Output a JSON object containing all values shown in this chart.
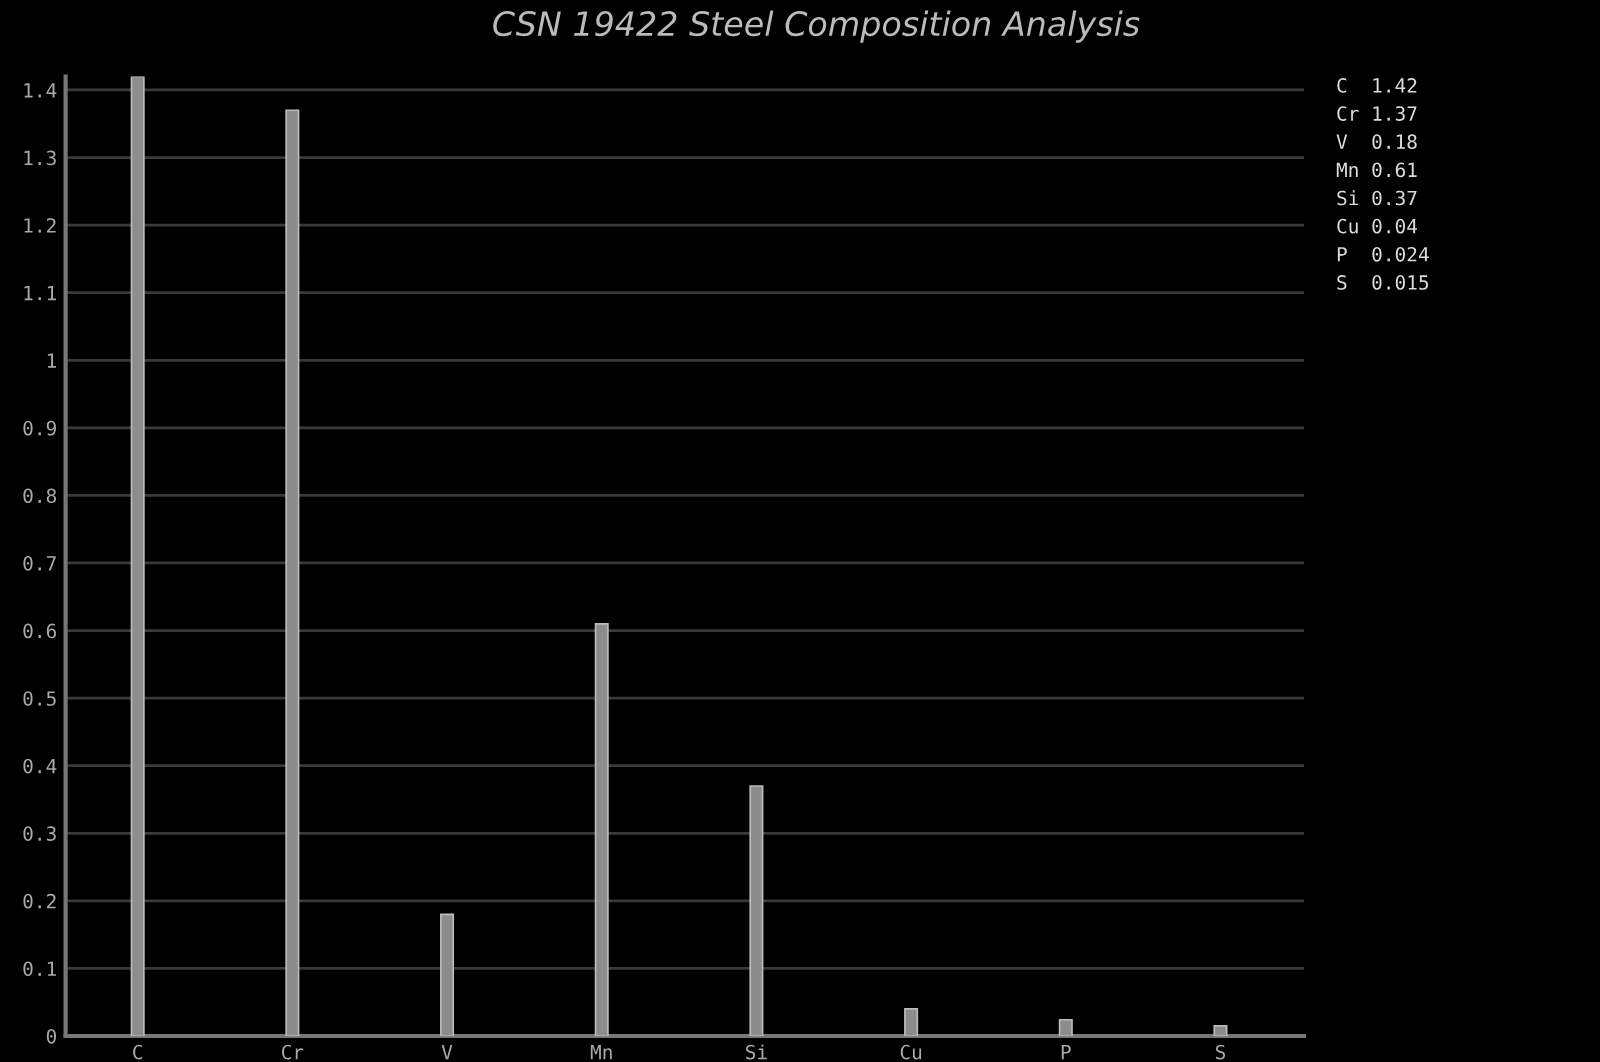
{
  "chart_data": {
    "type": "bar",
    "title": "CSN 19422 Steel Composition Analysis",
    "categories": [
      "C",
      "Cr",
      "V",
      "Mn",
      "Si",
      "Cu",
      "P",
      "S"
    ],
    "values": [
      1.42,
      1.37,
      0.18,
      0.61,
      0.37,
      0.04,
      0.024,
      0.015
    ],
    "value_labels": [
      "1.42",
      "1.37",
      "0.18",
      "0.61",
      "0.37",
      "0.04",
      "0.024",
      "0.015"
    ],
    "color": "#8c8c8c",
    "ylim": [
      0,
      1.42
    ],
    "yticks": [
      0,
      0.1,
      0.2,
      0.3,
      0.4,
      0.5,
      0.6,
      0.7,
      0.8,
      0.9,
      1,
      1.1,
      1.2,
      1.3,
      1.4
    ],
    "grid": "y",
    "legend": false
  }
}
